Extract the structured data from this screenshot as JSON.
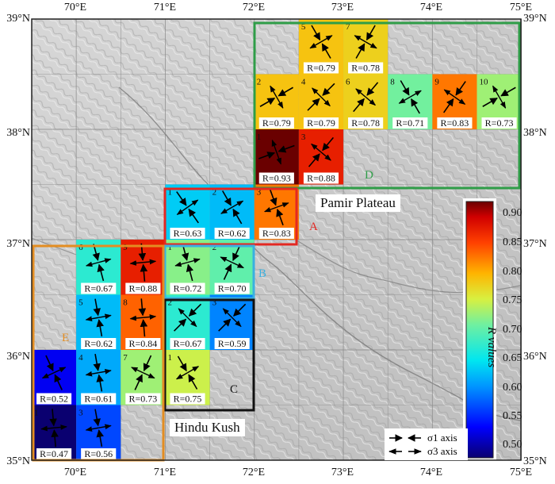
{
  "axes": {
    "lat_labels": [
      "39°N",
      "38°N",
      "37°N",
      "36°N",
      "35°N"
    ],
    "lon_labels": [
      "70°E",
      "71°E",
      "72°E",
      "73°E",
      "74°E",
      "75°E"
    ]
  },
  "places": {
    "pamir": "Pamir Plateau",
    "hindu_kush": "Hindu Kush"
  },
  "legend": {
    "sigma1": "σ1 axis",
    "sigma3": "σ3 axis"
  },
  "colorbar": {
    "title": "R values",
    "ticks": [
      "0.90",
      "0.85",
      "0.80",
      "0.75",
      "0.70",
      "0.65",
      "0.60",
      "0.55",
      "0.50"
    ],
    "range": [
      0.47,
      0.93
    ]
  },
  "regions": [
    {
      "id": "A",
      "color": "#e32822"
    },
    {
      "id": "B",
      "color": "#3ab0e0"
    },
    {
      "id": "C",
      "color": "#111111"
    },
    {
      "id": "D",
      "color": "#2f9d48"
    },
    {
      "id": "E",
      "color": "#e38d22"
    }
  ],
  "cells": [
    {
      "lon": 72.5,
      "lat": 38.5,
      "num": "5",
      "r": 0.79,
      "label": "R=0.79",
      "s1az": 150,
      "region": "D"
    },
    {
      "lon": 73.0,
      "lat": 38.5,
      "num": "7",
      "r": 0.78,
      "label": "R=0.78",
      "s1az": 30,
      "region": "D"
    },
    {
      "lon": 72.0,
      "lat": 38.0,
      "num": "2",
      "r": 0.79,
      "label": "R=0.79",
      "s1az": 60,
      "region": "D"
    },
    {
      "lon": 72.5,
      "lat": 38.0,
      "num": "4",
      "r": 0.79,
      "label": "R=0.79",
      "s1az": 45,
      "region": "D"
    },
    {
      "lon": 73.0,
      "lat": 38.0,
      "num": "6",
      "r": 0.78,
      "label": "R=0.78",
      "s1az": 40,
      "region": "D"
    },
    {
      "lon": 73.5,
      "lat": 38.0,
      "num": "8",
      "r": 0.71,
      "label": "R=0.71",
      "s1az": 150,
      "region": "D"
    },
    {
      "lon": 74.0,
      "lat": 38.0,
      "num": "9",
      "r": 0.83,
      "label": "R=0.83",
      "s1az": 35,
      "region": "D"
    },
    {
      "lon": 74.5,
      "lat": 38.0,
      "num": "10",
      "r": 0.73,
      "label": "R=0.73",
      "s1az": 60,
      "region": "D"
    },
    {
      "lon": 72.0,
      "lat": 37.5,
      "num": "1",
      "r": 0.93,
      "label": "R=0.93",
      "s1az": 70,
      "region": "D"
    },
    {
      "lon": 72.5,
      "lat": 37.5,
      "num": "3",
      "r": 0.88,
      "label": "R=0.88",
      "s1az": 40,
      "region": "D"
    },
    {
      "lon": 71.0,
      "lat": 37.0,
      "num": "1",
      "r": 0.63,
      "label": "R=0.63",
      "s1az": 145,
      "region": "A"
    },
    {
      "lon": 71.5,
      "lat": 37.0,
      "num": "2",
      "r": 0.62,
      "label": "R=0.62",
      "s1az": 150,
      "region": "A"
    },
    {
      "lon": 72.0,
      "lat": 37.0,
      "num": "3",
      "r": 0.83,
      "label": "R=0.83",
      "s1az": 160,
      "region": "A"
    },
    {
      "lon": 70.0,
      "lat": 36.5,
      "num": "6",
      "r": 0.67,
      "label": "R=0.67",
      "s1az": 165,
      "region": "E"
    },
    {
      "lon": 70.5,
      "lat": 36.5,
      "num": "9",
      "r": 0.88,
      "label": "R=0.88",
      "s1az": 175,
      "region": "E"
    },
    {
      "lon": 71.0,
      "lat": 36.5,
      "num": "1",
      "r": 0.72,
      "label": "R=0.72",
      "s1az": 165,
      "region": "B"
    },
    {
      "lon": 71.5,
      "lat": 36.5,
      "num": "2",
      "r": 0.7,
      "label": "R=0.70",
      "s1az": 25,
      "region": "B"
    },
    {
      "lon": 70.0,
      "lat": 36.0,
      "num": "5",
      "r": 0.62,
      "label": "R=0.62",
      "s1az": 170,
      "region": "E"
    },
    {
      "lon": 70.5,
      "lat": 36.0,
      "num": "8",
      "r": 0.84,
      "label": "R=0.84",
      "s1az": 175,
      "region": "E"
    },
    {
      "lon": 71.0,
      "lat": 36.0,
      "num": "2",
      "r": 0.67,
      "label": "R=0.67",
      "s1az": 45,
      "region": "C"
    },
    {
      "lon": 71.5,
      "lat": 36.0,
      "num": "3",
      "r": 0.59,
      "label": "R=0.59",
      "s1az": 45,
      "region": "C"
    },
    {
      "lon": 69.5,
      "lat": 35.5,
      "num": "",
      "r": 0.52,
      "label": "R=0.52",
      "s1az": 155,
      "region": "E"
    },
    {
      "lon": 70.0,
      "lat": 35.5,
      "num": "4",
      "r": 0.61,
      "label": "R=0.61",
      "s1az": 170,
      "region": "E"
    },
    {
      "lon": 70.5,
      "lat": 35.5,
      "num": "7",
      "r": 0.73,
      "label": "R=0.73",
      "s1az": 25,
      "region": "E"
    },
    {
      "lon": 71.0,
      "lat": 35.5,
      "num": "1",
      "r": 0.75,
      "label": "R=0.75",
      "s1az": 150,
      "region": "C"
    },
    {
      "lon": 69.5,
      "lat": 35.0,
      "num": "1",
      "r": 0.47,
      "label": "R=0.47",
      "s1az": 175,
      "region": "E"
    },
    {
      "lon": 70.0,
      "lat": 35.0,
      "num": "3",
      "r": 0.56,
      "label": "R=0.56",
      "s1az": 170,
      "region": "E"
    }
  ]
}
